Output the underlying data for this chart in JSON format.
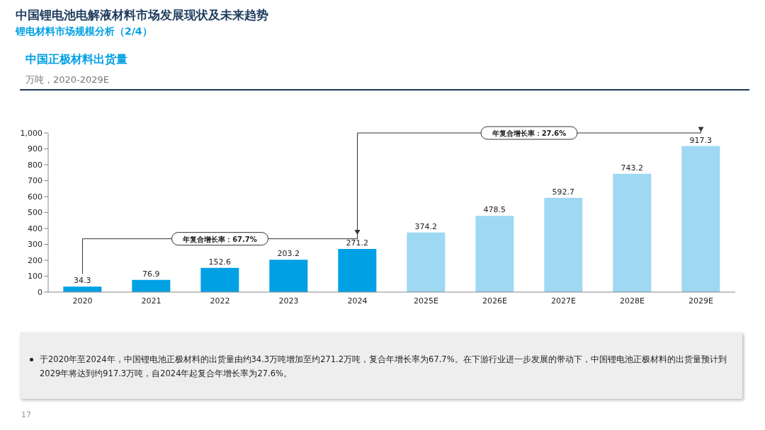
{
  "chart_data": {
    "type": "bar",
    "title": "中国正极材料出货量",
    "subtitle": "万吨，2020-2029E",
    "annotations": [
      "中国锂电池电解液材料市场发展现状及未来趋势",
      "锂电材料市场规模分析（2/4）",
      "年复合增长率：67.7%",
      "年复合增长率：27.6%",
      "于2020年至2024年，中国锂电池正极材料的出货量由约34.3万吨增加至约271.2万吨，复合年增长率为67.7%。在下游行业进一步发展的带动下，中国锂电池正极材料的出货量预计到2029年将达到约917.3万吨，自2024年起复合年增长率为27.6%。",
      "17"
    ],
    "categories": [
      "2020",
      "2021",
      "2022",
      "2023",
      "2024",
      "2025E",
      "2026E",
      "2027E",
      "2028E",
      "2029E"
    ],
    "values": [
      34.3,
      76.9,
      152.6,
      203.2,
      271.2,
      374.2,
      478.5,
      592.7,
      743.2,
      917.3
    ],
    "colors": [
      "#00a0e4",
      "#00a0e4",
      "#00a0e4",
      "#00a0e4",
      "#00a0e4",
      "#9fd8f2",
      "#9fd8f2",
      "#9fd8f2",
      "#9fd8f2",
      "#9fd8f2"
    ],
    "ylim": [
      0,
      1000
    ],
    "yticks": [
      0,
      100,
      200,
      300,
      400,
      500,
      600,
      700,
      800,
      900,
      {
        "value": 1000,
        "label": "1,000"
      }
    ],
    "data_labels": true
  }
}
